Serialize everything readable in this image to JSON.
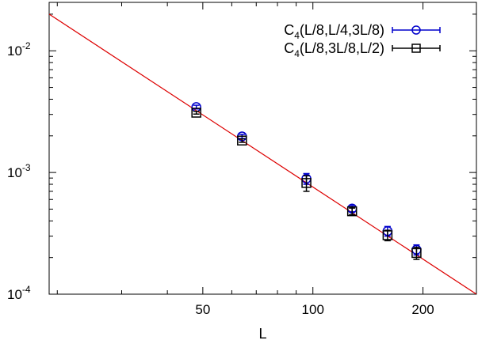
{
  "chart_data": {
    "type": "scatter",
    "title": "",
    "xlabel": "L",
    "ylabel": "",
    "xscale": "log",
    "yscale": "log",
    "xlim": [
      19,
      280
    ],
    "ylim": [
      0.0001,
      0.025
    ],
    "grid": false,
    "legend_position": "top-right",
    "x_ticks": [
      {
        "value": 50,
        "label": "50"
      },
      {
        "value": 100,
        "label": "100"
      },
      {
        "value": 200,
        "label": "200"
      }
    ],
    "y_ticks": [
      {
        "value": 0.0001,
        "base": "10",
        "exp": "-4"
      },
      {
        "value": 0.001,
        "base": "10",
        "exp": "-3"
      },
      {
        "value": 0.01,
        "base": "10",
        "exp": "-2"
      }
    ],
    "series": [
      {
        "name": "C",
        "name_sub": "4",
        "name_rest": "(L/8,L/4,3L/8)",
        "marker": "circle",
        "color": "#0000cc",
        "x": [
          48,
          64,
          96,
          128,
          160,
          192
        ],
        "y": [
          0.00345,
          0.00198,
          0.00089,
          0.000505,
          0.00033,
          0.000232
        ],
        "yerr": [
          0.00012,
          8e-05,
          9e-05,
          3e-05,
          3e-05,
          2.2e-05
        ]
      },
      {
        "name": "C",
        "name_sub": "4",
        "name_rest": "(L/8,3L/8,L/2)",
        "marker": "square",
        "color": "#000000",
        "x": [
          48,
          64,
          96,
          128,
          160,
          192
        ],
        "y": [
          0.0031,
          0.00183,
          0.00082,
          0.00048,
          0.000305,
          0.000218
        ],
        "yerr": [
          8e-05,
          6e-05,
          0.00012,
          3e-05,
          3e-05,
          2.5e-05
        ]
      }
    ],
    "fit_line": {
      "color": "#dd0000",
      "points": [
        [
          19,
          0.02
        ],
        [
          280,
          0.0001
        ]
      ]
    }
  }
}
